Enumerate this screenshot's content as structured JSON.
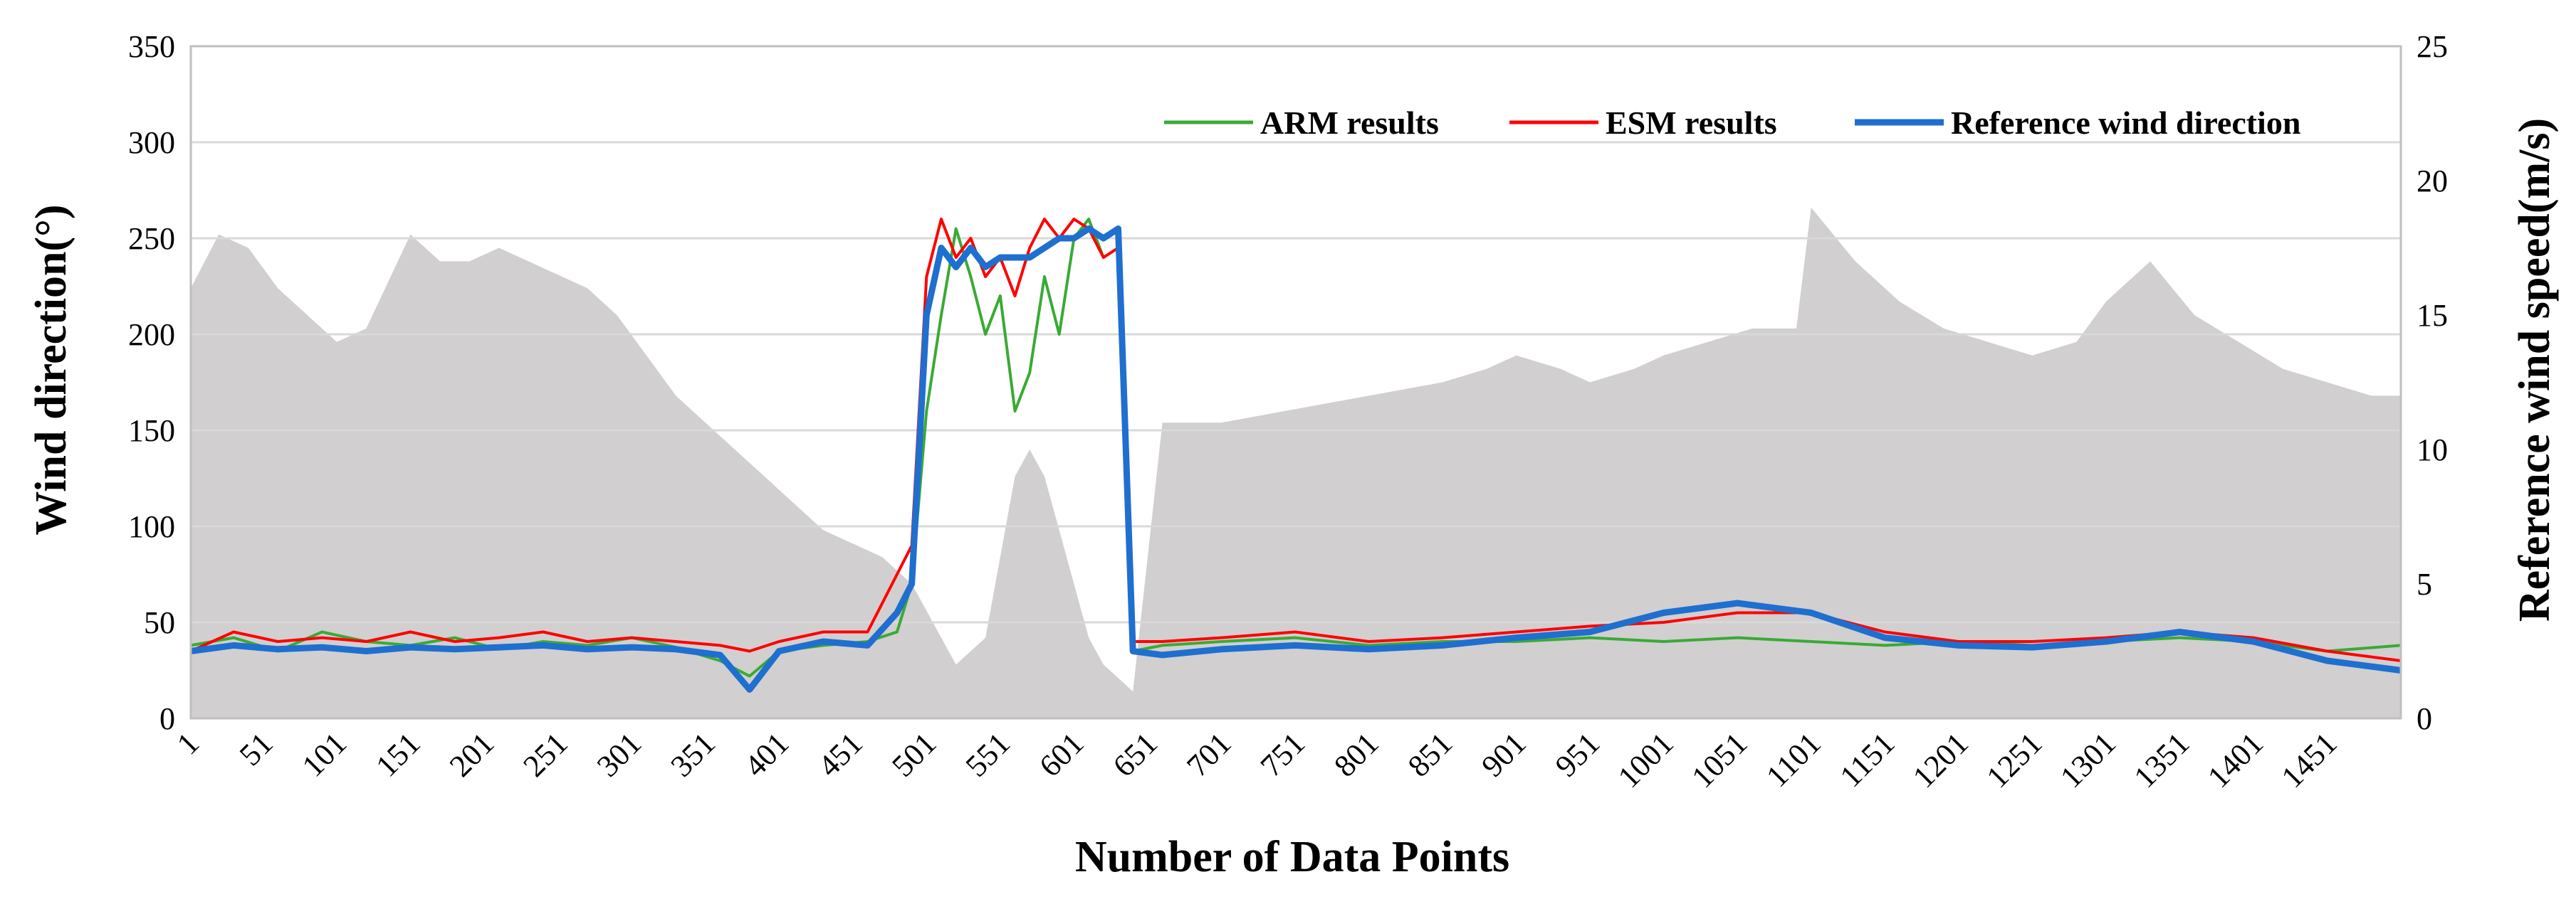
{
  "chart_data": {
    "type": "line",
    "title": "",
    "xlabel": "Number of Data Points",
    "ylabel_left": "Wind direction(°)",
    "ylabel_right": "Reference wind speed(m/s)",
    "x_range": [
      1,
      1500
    ],
    "ylim_left": [
      0,
      350
    ],
    "ylim_right": [
      0,
      25
    ],
    "x_tick_labels": [
      "1",
      "51",
      "101",
      "151",
      "201",
      "251",
      "301",
      "351",
      "401",
      "451",
      "501",
      "551",
      "601",
      "651",
      "701",
      "751",
      "801",
      "851",
      "901",
      "951",
      "1001",
      "1051",
      "1101",
      "1151",
      "1201",
      "1251",
      "1301",
      "1351",
      "1401",
      "1451"
    ],
    "y_left_tick_labels": [
      "0",
      "50",
      "100",
      "150",
      "200",
      "250",
      "300",
      "350"
    ],
    "y_right_tick_labels": [
      "0",
      "5",
      "10",
      "15",
      "20",
      "25"
    ],
    "grid": "horizontal",
    "legend_position": "top-right",
    "colors": {
      "arm": "#3aaa35",
      "esm": "#ff0000",
      "reference": "#1f6fcf",
      "wind_speed_area": "#d1cfd0",
      "grid": "#d9d9d9",
      "frame": "#bfbfbf"
    },
    "series": [
      {
        "name": "ARM results",
        "axis": "left",
        "x": [
          1,
          30,
          60,
          90,
          120,
          150,
          180,
          210,
          240,
          270,
          300,
          330,
          360,
          380,
          400,
          430,
          460,
          480,
          490,
          500,
          510,
          520,
          530,
          540,
          550,
          560,
          570,
          580,
          590,
          600,
          610,
          620,
          630,
          640,
          660,
          700,
          750,
          800,
          850,
          900,
          950,
          1000,
          1050,
          1100,
          1150,
          1200,
          1250,
          1300,
          1350,
          1400,
          1450,
          1500
        ],
        "values": [
          38,
          42,
          35,
          45,
          40,
          38,
          42,
          36,
          40,
          38,
          42,
          37,
          30,
          22,
          35,
          38,
          40,
          45,
          70,
          160,
          210,
          255,
          230,
          200,
          220,
          160,
          180,
          230,
          200,
          250,
          260,
          240,
          245,
          35,
          38,
          40,
          42,
          38,
          40,
          40,
          42,
          40,
          42,
          40,
          38,
          40,
          38,
          40,
          42,
          40,
          35,
          38
        ]
      },
      {
        "name": "ESM results",
        "axis": "left",
        "x": [
          1,
          30,
          60,
          90,
          120,
          150,
          180,
          210,
          240,
          270,
          300,
          330,
          360,
          380,
          400,
          430,
          460,
          480,
          490,
          500,
          510,
          520,
          530,
          540,
          550,
          560,
          570,
          580,
          590,
          600,
          610,
          620,
          630,
          640,
          660,
          700,
          750,
          800,
          850,
          900,
          950,
          1000,
          1050,
          1100,
          1150,
          1200,
          1250,
          1300,
          1350,
          1400,
          1450,
          1500
        ],
        "values": [
          35,
          45,
          40,
          42,
          40,
          45,
          40,
          42,
          45,
          40,
          42,
          40,
          38,
          35,
          40,
          45,
          45,
          75,
          90,
          230,
          260,
          240,
          250,
          230,
          240,
          220,
          245,
          260,
          250,
          260,
          255,
          240,
          245,
          40,
          40,
          42,
          45,
          40,
          42,
          45,
          48,
          50,
          55,
          55,
          45,
          40,
          40,
          42,
          45,
          42,
          35,
          30
        ]
      },
      {
        "name": "Reference wind direction",
        "axis": "left",
        "x": [
          1,
          30,
          60,
          90,
          120,
          150,
          180,
          210,
          240,
          270,
          300,
          330,
          360,
          380,
          400,
          430,
          460,
          480,
          490,
          500,
          510,
          520,
          530,
          540,
          550,
          560,
          570,
          580,
          590,
          600,
          610,
          620,
          630,
          640,
          660,
          700,
          750,
          800,
          850,
          900,
          950,
          1000,
          1050,
          1100,
          1150,
          1200,
          1250,
          1300,
          1350,
          1400,
          1450,
          1500
        ],
        "values": [
          35,
          38,
          36,
          37,
          35,
          37,
          36,
          37,
          38,
          36,
          37,
          36,
          33,
          15,
          35,
          40,
          38,
          55,
          70,
          210,
          245,
          235,
          245,
          235,
          240,
          240,
          240,
          245,
          250,
          250,
          255,
          250,
          255,
          35,
          33,
          36,
          38,
          36,
          38,
          42,
          45,
          55,
          60,
          55,
          42,
          38,
          37,
          40,
          45,
          40,
          30,
          25
        ]
      },
      {
        "name": "Reference wind speed",
        "axis": "right",
        "x": [
          1,
          20,
          40,
          60,
          80,
          100,
          120,
          150,
          170,
          190,
          210,
          230,
          250,
          270,
          290,
          310,
          330,
          350,
          370,
          390,
          410,
          430,
          450,
          470,
          490,
          500,
          510,
          520,
          530,
          540,
          550,
          560,
          570,
          580,
          590,
          600,
          610,
          620,
          630,
          640,
          660,
          700,
          750,
          800,
          850,
          880,
          900,
          930,
          950,
          980,
          1000,
          1030,
          1060,
          1090,
          1100,
          1130,
          1160,
          1190,
          1220,
          1250,
          1280,
          1300,
          1330,
          1360,
          1390,
          1420,
          1450,
          1480,
          1500
        ],
        "values": [
          16,
          18,
          17.5,
          16,
          15,
          14,
          14.5,
          18,
          17,
          17,
          17.5,
          17,
          16.5,
          16,
          15,
          13.5,
          12,
          11,
          10,
          9,
          8,
          7,
          6.5,
          6,
          5,
          4,
          3,
          2,
          2.5,
          3,
          6,
          9,
          10,
          9,
          7,
          5,
          3,
          2,
          1.5,
          1,
          11,
          11,
          11.5,
          12,
          12.5,
          13,
          13.5,
          13,
          12.5,
          13,
          13.5,
          14,
          14.5,
          14.5,
          19,
          17,
          15.5,
          14.5,
          14,
          13.5,
          14,
          15.5,
          17,
          15,
          14,
          13,
          12.5,
          12,
          12
        ]
      }
    ]
  }
}
